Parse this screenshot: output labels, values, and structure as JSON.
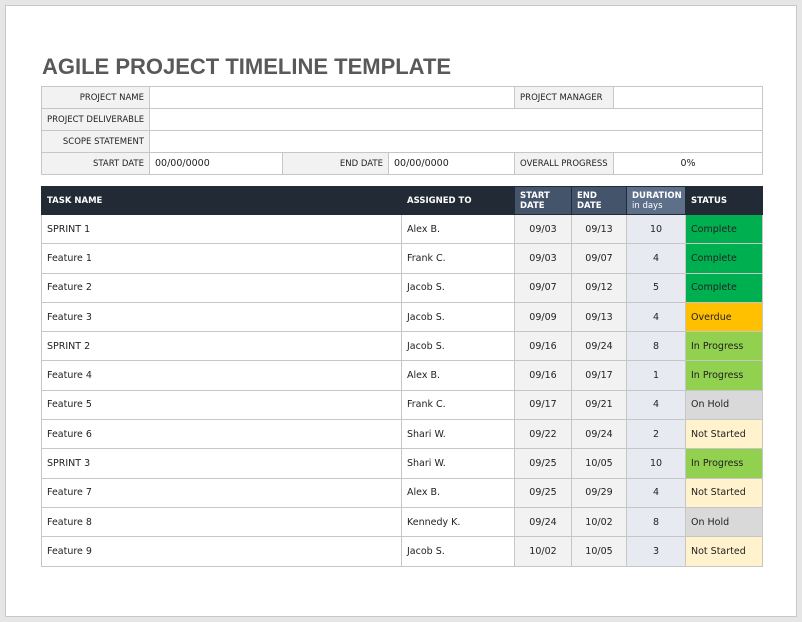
{
  "title": "AGILE PROJECT TIMELINE TEMPLATE",
  "info": {
    "project_name": {
      "label": "PROJECT NAME"
    },
    "project_manager": {
      "label": "PROJECT MANAGER"
    },
    "project_deliverable": {
      "label": "PROJECT DELIVERABLE"
    },
    "scope_statement": {
      "label": "SCOPE STATEMENT"
    },
    "start_date": {
      "label": "START DATE",
      "value": "00/00/0000"
    },
    "end_date": {
      "label": "END DATE",
      "value": "00/00/0000"
    },
    "overall_progress": {
      "label": "OVERALL PROGRESS",
      "value": "0%"
    }
  },
  "table": {
    "columns": [
      {
        "label": "TASK NAME"
      },
      {
        "label": "ASSIGNED TO"
      },
      {
        "label": "START DATE"
      },
      {
        "label": "END DATE"
      },
      {
        "label": "DURATION",
        "sub": "in days"
      },
      {
        "label": "STATUS"
      }
    ],
    "rows": [
      [
        "SPRINT 1",
        "Alex B.",
        "09/03",
        "09/13",
        10,
        "Complete",
        "#00b050"
      ],
      [
        "Feature 1",
        "Frank C.",
        "09/03",
        "09/07",
        4,
        "Complete",
        "#00b050"
      ],
      [
        "Feature 2",
        "Jacob S.",
        "09/07",
        "09/12",
        5,
        "Complete",
        "#00b050"
      ],
      [
        "Feature 3",
        "Jacob S.",
        "09/09",
        "09/13",
        4,
        "Overdue",
        "#ffc000"
      ],
      [
        "SPRINT 2",
        "Jacob S.",
        "09/16",
        "09/24",
        8,
        "In Progress",
        "#92d050"
      ],
      [
        "Feature 4",
        "Alex B.",
        "09/16",
        "09/17",
        1,
        "In Progress",
        "#92d050"
      ],
      [
        "Feature 5",
        "Frank C.",
        "09/17",
        "09/21",
        4,
        "On Hold",
        "#d9d9d9"
      ],
      [
        "Feature 6",
        "Shari W.",
        "09/22",
        "09/24",
        2,
        "Not Started",
        "#fff2cc"
      ],
      [
        "SPRINT 3",
        "Shari W.",
        "09/25",
        "10/05",
        10,
        "In Progress",
        "#92d050"
      ],
      [
        "Feature 7",
        "Alex B.",
        "09/25",
        "09/29",
        4,
        "Not Started",
        "#fff2cc"
      ],
      [
        "Feature 8",
        "Kennedy K.",
        "09/24",
        "10/02",
        8,
        "On Hold",
        "#d9d9d9"
      ],
      [
        "Feature 9",
        "Jacob S.",
        "10/02",
        "10/05",
        3,
        "Not Started",
        "#fff2cc"
      ]
    ]
  }
}
